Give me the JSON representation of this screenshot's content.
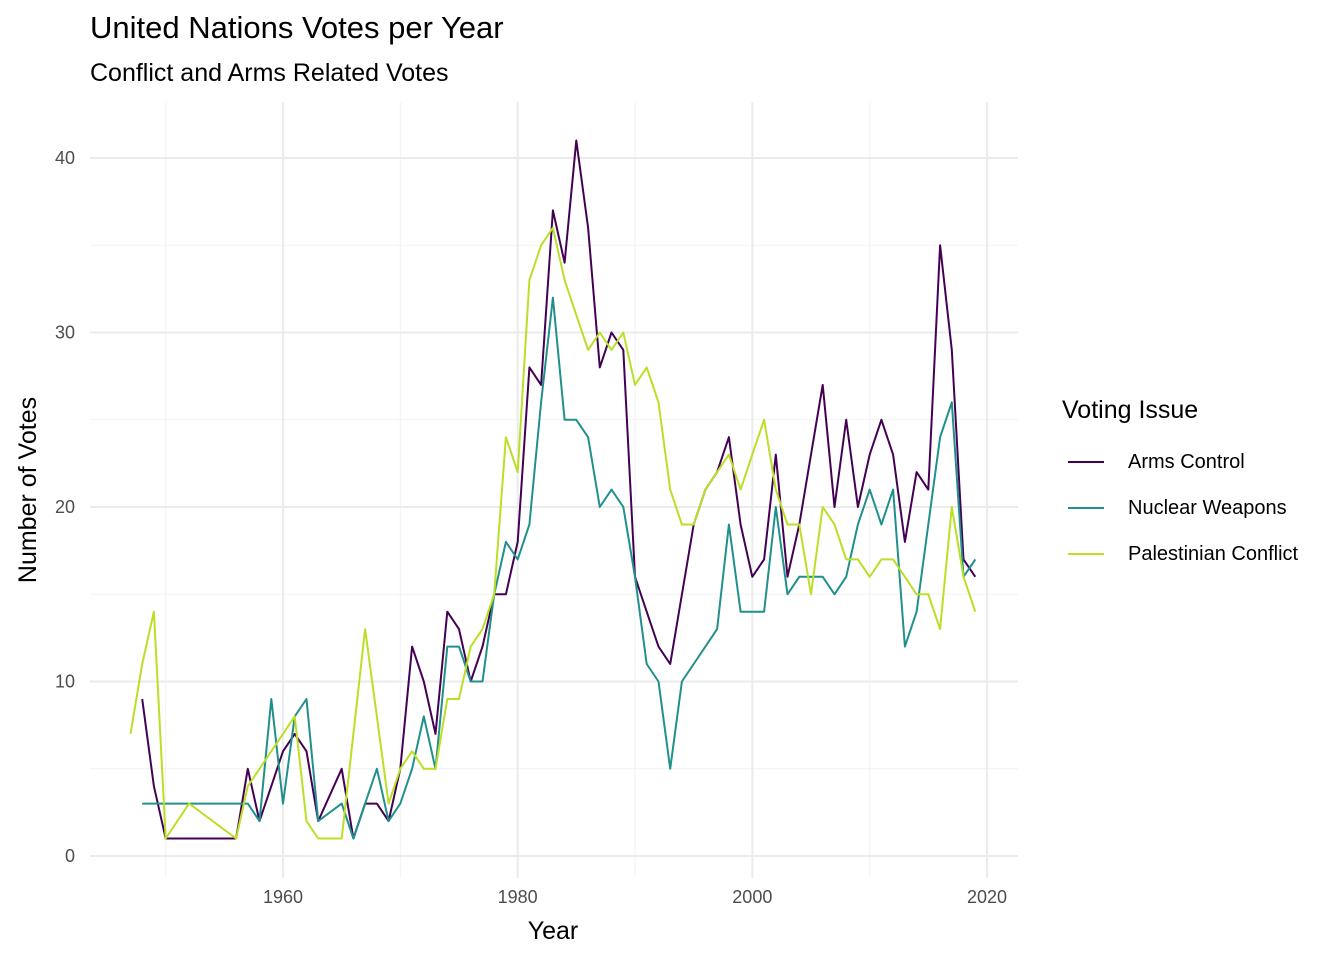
{
  "chart_data": {
    "type": "line",
    "title": "United Nations Votes per Year",
    "subtitle": "Conflict and Arms Related Votes",
    "xlabel": "Year",
    "ylabel": "Number of Votes",
    "xlim": [
      1944.5,
      2022.5
    ],
    "ylim": [
      -1,
      43
    ],
    "x_ticks": [
      1960,
      1980,
      2000,
      2020
    ],
    "y_ticks": [
      0,
      10,
      20,
      30,
      40
    ],
    "x_minor_ticks": [
      1950,
      1970,
      1990,
      2010
    ],
    "y_minor_ticks": [
      5,
      15,
      25,
      35
    ],
    "grid": true,
    "legend": {
      "title": "Voting Issue",
      "position": "right"
    },
    "series": [
      {
        "name": "Arms Control",
        "color": "#440154",
        "points": [
          [
            1948,
            9
          ],
          [
            1949,
            4
          ],
          [
            1950,
            1
          ],
          [
            1951,
            1
          ],
          [
            1952,
            1
          ],
          [
            1953,
            1
          ],
          [
            1954,
            1
          ],
          [
            1955,
            1
          ],
          [
            1956,
            1
          ],
          [
            1957,
            5
          ],
          [
            1958,
            2
          ],
          [
            1959,
            4
          ],
          [
            1960,
            6
          ],
          [
            1961,
            7
          ],
          [
            1962,
            6
          ],
          [
            1963,
            2
          ],
          [
            1965,
            5
          ],
          [
            1966,
            1
          ],
          [
            1967,
            3
          ],
          [
            1968,
            3
          ],
          [
            1969,
            2
          ],
          [
            1970,
            5
          ],
          [
            1971,
            12
          ],
          [
            1972,
            10
          ],
          [
            1973,
            7
          ],
          [
            1974,
            14
          ],
          [
            1975,
            13
          ],
          [
            1976,
            10
          ],
          [
            1977,
            12
          ],
          [
            1978,
            15
          ],
          [
            1979,
            15
          ],
          [
            1980,
            18
          ],
          [
            1981,
            28
          ],
          [
            1982,
            27
          ],
          [
            1983,
            37
          ],
          [
            1984,
            34
          ],
          [
            1985,
            41
          ],
          [
            1986,
            36
          ],
          [
            1987,
            28
          ],
          [
            1988,
            30
          ],
          [
            1989,
            29
          ],
          [
            1990,
            16
          ],
          [
            1991,
            14
          ],
          [
            1992,
            12
          ],
          [
            1993,
            11
          ],
          [
            1995,
            19
          ],
          [
            1996,
            21
          ],
          [
            1997,
            22
          ],
          [
            1998,
            24
          ],
          [
            1999,
            19
          ],
          [
            2000,
            16
          ],
          [
            2001,
            17
          ],
          [
            2002,
            23
          ],
          [
            2003,
            16
          ],
          [
            2004,
            19
          ],
          [
            2005,
            23
          ],
          [
            2006,
            27
          ],
          [
            2007,
            20
          ],
          [
            2008,
            25
          ],
          [
            2009,
            20
          ],
          [
            2010,
            23
          ],
          [
            2011,
            25
          ],
          [
            2012,
            23
          ],
          [
            2013,
            18
          ],
          [
            2014,
            22
          ],
          [
            2015,
            21
          ],
          [
            2016,
            35
          ],
          [
            2017,
            29
          ],
          [
            2018,
            17
          ],
          [
            2019,
            16
          ]
        ]
      },
      {
        "name": "Nuclear Weapons",
        "color": "#21908C",
        "points": [
          [
            1948,
            3
          ],
          [
            1949,
            3
          ],
          [
            1950,
            3
          ],
          [
            1951,
            3
          ],
          [
            1952,
            3
          ],
          [
            1953,
            3
          ],
          [
            1954,
            3
          ],
          [
            1955,
            3
          ],
          [
            1956,
            3
          ],
          [
            1957,
            3
          ],
          [
            1958,
            2
          ],
          [
            1959,
            9
          ],
          [
            1960,
            3
          ],
          [
            1961,
            8
          ],
          [
            1962,
            9
          ],
          [
            1963,
            2
          ],
          [
            1965,
            3
          ],
          [
            1966,
            1
          ],
          [
            1967,
            3
          ],
          [
            1968,
            5
          ],
          [
            1969,
            2
          ],
          [
            1970,
            3
          ],
          [
            1971,
            5
          ],
          [
            1972,
            8
          ],
          [
            1973,
            5
          ],
          [
            1974,
            12
          ],
          [
            1975,
            12
          ],
          [
            1976,
            10
          ],
          [
            1977,
            10
          ],
          [
            1978,
            15
          ],
          [
            1979,
            18
          ],
          [
            1980,
            17
          ],
          [
            1981,
            19
          ],
          [
            1982,
            26
          ],
          [
            1983,
            32
          ],
          [
            1984,
            25
          ],
          [
            1985,
            25
          ],
          [
            1986,
            24
          ],
          [
            1987,
            20
          ],
          [
            1988,
            21
          ],
          [
            1989,
            20
          ],
          [
            1990,
            16
          ],
          [
            1991,
            11
          ],
          [
            1992,
            10
          ],
          [
            1993,
            5
          ],
          [
            1994,
            10
          ],
          [
            1995,
            11
          ],
          [
            1996,
            12
          ],
          [
            1997,
            13
          ],
          [
            1998,
            19
          ],
          [
            1999,
            14
          ],
          [
            2000,
            14
          ],
          [
            2001,
            14
          ],
          [
            2002,
            20
          ],
          [
            2003,
            15
          ],
          [
            2004,
            16
          ],
          [
            2005,
            16
          ],
          [
            2006,
            16
          ],
          [
            2007,
            15
          ],
          [
            2008,
            16
          ],
          [
            2009,
            19
          ],
          [
            2010,
            21
          ],
          [
            2011,
            19
          ],
          [
            2012,
            21
          ],
          [
            2013,
            12
          ],
          [
            2014,
            14
          ],
          [
            2015,
            19
          ],
          [
            2016,
            24
          ],
          [
            2017,
            26
          ],
          [
            2018,
            16
          ],
          [
            2019,
            17
          ]
        ]
      },
      {
        "name": "Palestinian Conflict",
        "color": "#BBDF27",
        "points": [
          [
            1947,
            7
          ],
          [
            1948,
            11
          ],
          [
            1949,
            14
          ],
          [
            1950,
            1
          ],
          [
            1952,
            3
          ],
          [
            1956,
            1
          ],
          [
            1957,
            4
          ],
          [
            1960,
            7
          ],
          [
            1961,
            8
          ],
          [
            1962,
            2
          ],
          [
            1963,
            1
          ],
          [
            1964,
            1
          ],
          [
            1965,
            1
          ],
          [
            1967,
            13
          ],
          [
            1969,
            3
          ],
          [
            1970,
            5
          ],
          [
            1971,
            6
          ],
          [
            1972,
            5
          ],
          [
            1973,
            5
          ],
          [
            1974,
            9
          ],
          [
            1975,
            9
          ],
          [
            1976,
            12
          ],
          [
            1977,
            13
          ],
          [
            1978,
            15
          ],
          [
            1979,
            24
          ],
          [
            1980,
            22
          ],
          [
            1981,
            33
          ],
          [
            1982,
            35
          ],
          [
            1983,
            36
          ],
          [
            1984,
            33
          ],
          [
            1985,
            31
          ],
          [
            1986,
            29
          ],
          [
            1987,
            30
          ],
          [
            1988,
            29
          ],
          [
            1989,
            30
          ],
          [
            1990,
            27
          ],
          [
            1991,
            28
          ],
          [
            1992,
            26
          ],
          [
            1993,
            21
          ],
          [
            1994,
            19
          ],
          [
            1995,
            19
          ],
          [
            1996,
            21
          ],
          [
            1997,
            22
          ],
          [
            1998,
            23
          ],
          [
            1999,
            21
          ],
          [
            2000,
            23
          ],
          [
            2001,
            25
          ],
          [
            2002,
            21
          ],
          [
            2003,
            19
          ],
          [
            2004,
            19
          ],
          [
            2005,
            15
          ],
          [
            2006,
            20
          ],
          [
            2007,
            19
          ],
          [
            2008,
            17
          ],
          [
            2009,
            17
          ],
          [
            2010,
            16
          ],
          [
            2011,
            17
          ],
          [
            2012,
            17
          ],
          [
            2013,
            16
          ],
          [
            2014,
            15
          ],
          [
            2015,
            15
          ],
          [
            2016,
            13
          ],
          [
            2017,
            20
          ],
          [
            2018,
            16
          ],
          [
            2019,
            14
          ]
        ]
      }
    ]
  }
}
